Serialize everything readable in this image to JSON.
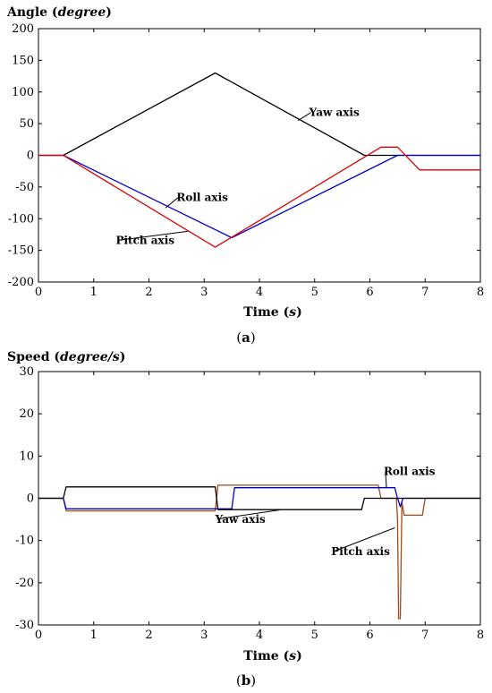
{
  "chart_data": [
    {
      "type": "line",
      "title_main": "Angle (",
      "title_unit": "degree",
      "title_close": ")",
      "xlabel_main": "Time (",
      "xlabel_unit": "s",
      "xlabel_close": ")",
      "caption_open": "(",
      "caption_letter": "a",
      "caption_close": ")",
      "xlim": [
        0,
        8
      ],
      "ylim": [
        -200,
        200
      ],
      "xticks": [
        0,
        1,
        2,
        3,
        4,
        5,
        6,
        7,
        8
      ],
      "yticks": [
        -200,
        -150,
        -100,
        -50,
        0,
        50,
        100,
        150,
        200
      ],
      "grid": false,
      "series": [
        {
          "name": "Yaw axis",
          "color": "#000000",
          "x": [
            0,
            0.45,
            3.2,
            5.9,
            6.5,
            8
          ],
          "y": [
            0,
            0,
            130,
            0,
            0,
            0
          ]
        },
        {
          "name": "Roll axis",
          "color": "#0000cc",
          "x": [
            0,
            0.45,
            3.5,
            6.5,
            8
          ],
          "y": [
            0,
            0,
            -130,
            0,
            0
          ]
        },
        {
          "name": "Pitch axis",
          "color": "#dd0000",
          "x": [
            0,
            0.45,
            3.2,
            6.2,
            6.5,
            6.9,
            8
          ],
          "y": [
            0,
            0,
            -145,
            13,
            13,
            -23,
            -23
          ]
        }
      ],
      "annotations": [
        {
          "text": "Yaw axis",
          "x": 4.9,
          "y": 62,
          "point_x": 4.7,
          "point_y": 55
        },
        {
          "text": "Roll axis",
          "x": 2.5,
          "y": -72,
          "point_x": 2.3,
          "point_y": -83
        },
        {
          "text": "Pitch axis",
          "x": 1.4,
          "y": -140,
          "point_x": 2.7,
          "point_y": -120
        }
      ]
    },
    {
      "type": "line",
      "title_main": "Speed (",
      "title_unit": "degree/s",
      "title_close": ")",
      "xlabel_main": "Time (",
      "xlabel_unit": "s",
      "xlabel_close": ")",
      "caption_open": "(",
      "caption_letter": "b",
      "caption_close": ")",
      "xlim": [
        0,
        8
      ],
      "ylim": [
        -30,
        30
      ],
      "xticks": [
        0,
        1,
        2,
        3,
        4,
        5,
        6,
        7,
        8
      ],
      "yticks": [
        -30,
        -20,
        -10,
        0,
        10,
        20,
        30
      ],
      "grid": false,
      "series": [
        {
          "name": "Pitch axis",
          "color": "#a04a1a",
          "x": [
            0,
            0.45,
            0.5,
            3.2,
            3.25,
            6.15,
            6.2,
            6.48,
            6.5,
            6.52,
            6.55,
            6.58,
            6.62,
            6.65,
            6.95,
            7.0,
            8
          ],
          "y": [
            0,
            0,
            -3,
            -3,
            3.1,
            3.1,
            0,
            0,
            -5,
            -28.5,
            -28.5,
            -1,
            -4,
            -4,
            -4,
            0,
            0
          ]
        },
        {
          "name": "Roll axis",
          "color": "#0000cc",
          "x": [
            0,
            0.45,
            0.5,
            3.2,
            3.25,
            3.5,
            3.55,
            6.45,
            6.5,
            6.55,
            6.6,
            8
          ],
          "y": [
            0,
            0,
            -2.5,
            -2.5,
            -2.5,
            -2.5,
            2.5,
            2.5,
            0,
            -2,
            0,
            0
          ]
        },
        {
          "name": "Yaw axis",
          "color": "#000000",
          "x": [
            0,
            0.45,
            0.5,
            3.2,
            3.25,
            5.85,
            5.9,
            8
          ],
          "y": [
            0,
            0,
            2.7,
            2.7,
            -2.7,
            -2.7,
            0,
            0
          ]
        }
      ],
      "annotations": [
        {
          "text": "Roll axis",
          "x": 6.25,
          "y": 5.5,
          "point_x": 6.3,
          "point_y": 2.5
        },
        {
          "text": "Yaw axis",
          "x": 3.2,
          "y": -5.8,
          "point_x": 4.4,
          "point_y": -2.7
        },
        {
          "text": "Pitch axis",
          "x": 5.3,
          "y": -13.5,
          "point_x": 6.45,
          "point_y": -7
        }
      ]
    }
  ]
}
